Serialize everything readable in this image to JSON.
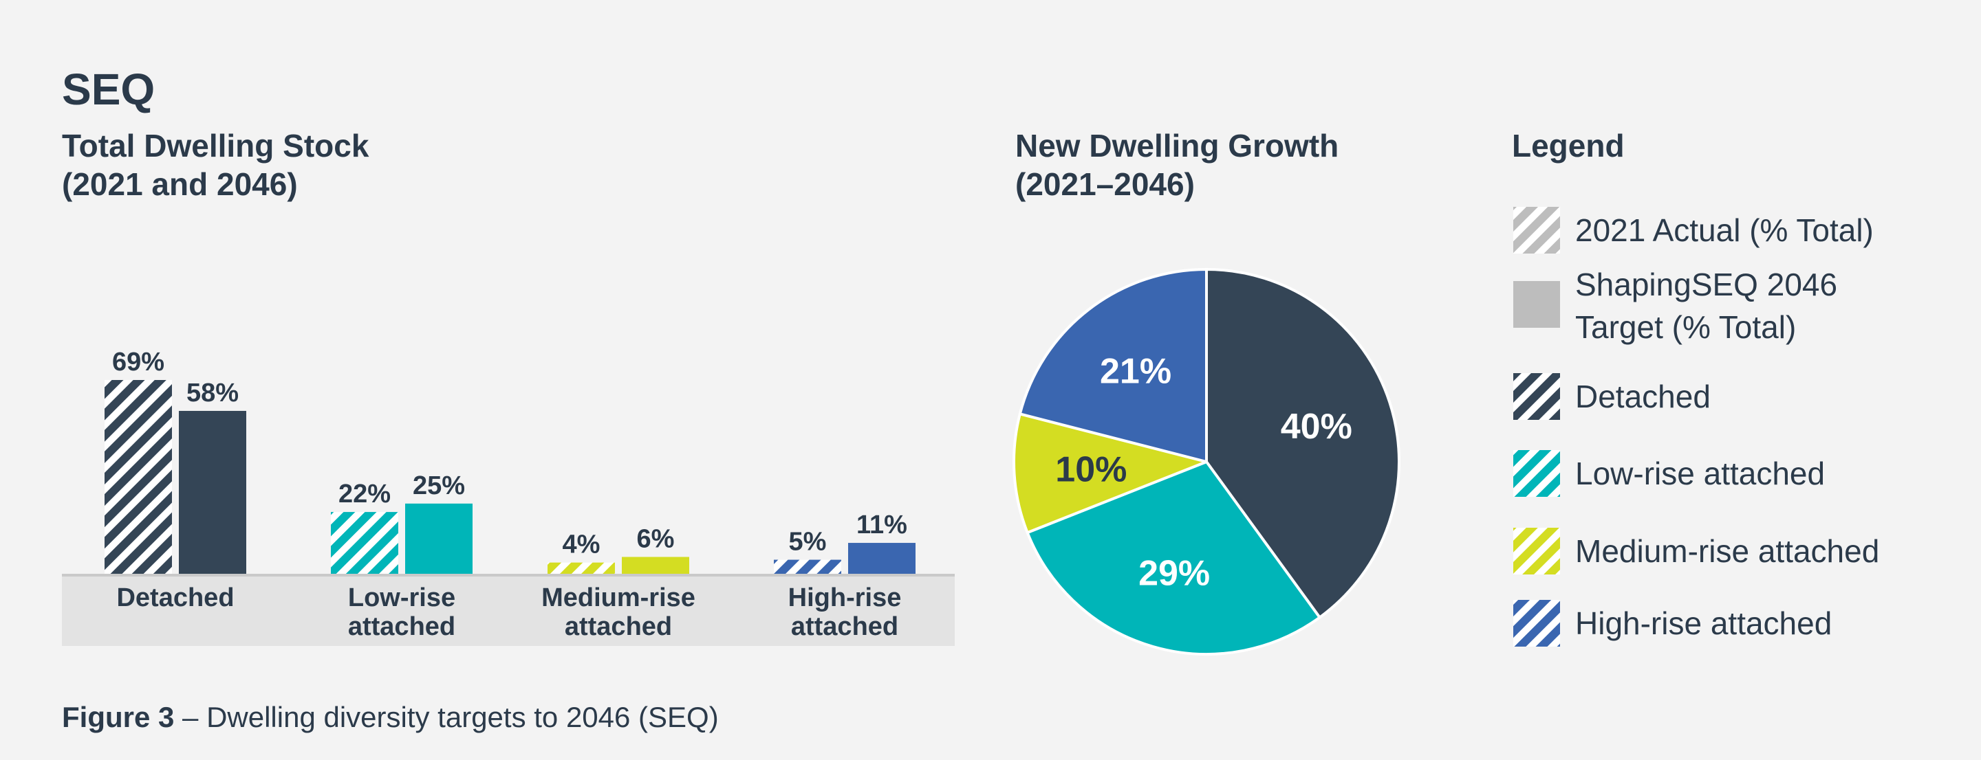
{
  "page_title": "SEQ",
  "figure_caption": {
    "label": "Figure 3",
    "text": " – Dwelling diversity targets to 2046 (SEQ)"
  },
  "colors": {
    "detached": "#344556",
    "low_rise": "#00b5b8",
    "medium_rise": "#d4dd22",
    "high_rise": "#3a66b0",
    "text": "#2b3a4a",
    "category_band": "#e3e3e3",
    "legend_grey": "#bdbdbd"
  },
  "chart_data": [
    {
      "type": "bar",
      "title": "Total Dwelling Stock",
      "subtitle": "(2021 and 2046)",
      "categories": [
        [
          "Detached"
        ],
        [
          "Low-rise",
          "attached"
        ],
        [
          "Medium-rise",
          "attached"
        ],
        [
          "High-rise",
          "attached"
        ]
      ],
      "series": [
        {
          "name": "2021 Actual (% Total)",
          "pattern": "hatched",
          "values": [
            69,
            22,
            4,
            5
          ],
          "labels": [
            "69%",
            "22%",
            "4%",
            "5%"
          ]
        },
        {
          "name": "ShapingSEQ 2046 Target (% Total)",
          "pattern": "solid",
          "values": [
            58,
            25,
            6,
            11
          ],
          "labels": [
            "58%",
            "25%",
            "6%",
            "11%"
          ]
        }
      ],
      "category_colors": [
        "detached",
        "low_rise",
        "medium_rise",
        "high_rise"
      ],
      "ylim": [
        0,
        69
      ],
      "grid": false
    },
    {
      "type": "pie",
      "title": "New Dwelling Growth",
      "subtitle": "(2021–2046)",
      "slices": [
        {
          "category": "Detached",
          "value": 40,
          "label": "40%",
          "color": "detached"
        },
        {
          "category": "Low-rise attached",
          "value": 29,
          "label": "29%",
          "color": "low_rise"
        },
        {
          "category": "Medium-rise attached",
          "value": 10,
          "label": "10%",
          "color": "medium_rise"
        },
        {
          "category": "High-rise attached",
          "value": 21,
          "label": "21%",
          "color": "high_rise"
        }
      ],
      "start_angle_deg": 0,
      "direction": "clockwise"
    }
  ],
  "legend": {
    "title": "Legend",
    "placement": "right",
    "items": [
      {
        "label_lines": [
          "2021 Actual (% Total)"
        ],
        "color": "legend_grey",
        "pattern": "hatched"
      },
      {
        "label_lines": [
          "ShapingSEQ 2046",
          "Target (% Total)"
        ],
        "color": "legend_grey",
        "pattern": "solid"
      },
      {
        "label_lines": [
          "Detached"
        ],
        "color": "detached",
        "pattern": "hatched"
      },
      {
        "label_lines": [
          "Low-rise attached"
        ],
        "color": "low_rise",
        "pattern": "hatched"
      },
      {
        "label_lines": [
          "Medium-rise attached"
        ],
        "color": "medium_rise",
        "pattern": "hatched"
      },
      {
        "label_lines": [
          "High-rise attached"
        ],
        "color": "high_rise",
        "pattern": "hatched"
      }
    ]
  }
}
